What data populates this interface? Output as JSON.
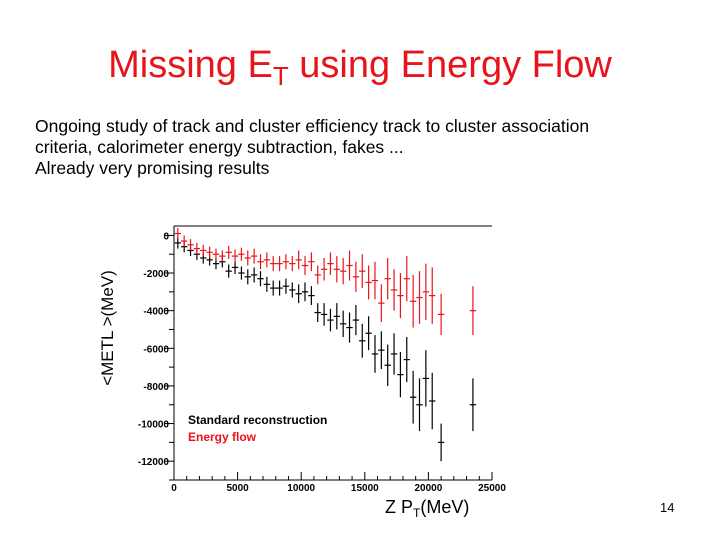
{
  "title_main": "Missing E",
  "title_sub": "T",
  "title_rest": " using Energy Flow",
  "body": [
    "Ongoing study of track and cluster efficiency track to cluster association",
    "criteria, calorimeter energy subtraction,  fakes ...",
    "Already very promising results"
  ],
  "page_number": "14",
  "chart_data": {
    "type": "scatter",
    "title": "",
    "ylabel": "<METL >(MeV)",
    "xlabel_prefix": "Z  P",
    "xlabel_sub": "T",
    "xlabel_suffix": "(MeV)",
    "xlim": [
      0,
      25000
    ],
    "ylim": [
      -13000,
      500
    ],
    "x_ticks": [
      0,
      5000,
      10000,
      15000,
      20000,
      25000
    ],
    "y_ticks": [
      0,
      -2000,
      -4000,
      -6000,
      -8000,
      -10000,
      -12000
    ],
    "colors": {
      "standard": "#000000",
      "energy_flow": "#e8141b"
    },
    "series": [
      {
        "name": "Standard reconstruction",
        "color": "#000000",
        "points": [
          {
            "x": 300,
            "y": -400,
            "ex": 250,
            "ey": 300
          },
          {
            "x": 800,
            "y": -600,
            "ex": 250,
            "ey": 300
          },
          {
            "x": 1300,
            "y": -800,
            "ex": 250,
            "ey": 300
          },
          {
            "x": 1800,
            "y": -1000,
            "ex": 250,
            "ey": 300
          },
          {
            "x": 2300,
            "y": -1200,
            "ex": 250,
            "ey": 300
          },
          {
            "x": 2800,
            "y": -1300,
            "ex": 250,
            "ey": 300
          },
          {
            "x": 3300,
            "y": -1500,
            "ex": 250,
            "ey": 300
          },
          {
            "x": 3800,
            "y": -1400,
            "ex": 250,
            "ey": 300
          },
          {
            "x": 4300,
            "y": -1900,
            "ex": 250,
            "ey": 350
          },
          {
            "x": 4800,
            "y": -1700,
            "ex": 250,
            "ey": 350
          },
          {
            "x": 5300,
            "y": -2000,
            "ex": 250,
            "ey": 350
          },
          {
            "x": 5800,
            "y": -2200,
            "ex": 250,
            "ey": 400
          },
          {
            "x": 6300,
            "y": -2100,
            "ex": 250,
            "ey": 400
          },
          {
            "x": 6800,
            "y": -2300,
            "ex": 250,
            "ey": 400
          },
          {
            "x": 7300,
            "y": -2600,
            "ex": 250,
            "ey": 400
          },
          {
            "x": 7800,
            "y": -2800,
            "ex": 250,
            "ey": 400
          },
          {
            "x": 8300,
            "y": -2800,
            "ex": 250,
            "ey": 400
          },
          {
            "x": 8800,
            "y": -2700,
            "ex": 250,
            "ey": 400
          },
          {
            "x": 9300,
            "y": -2900,
            "ex": 250,
            "ey": 400
          },
          {
            "x": 9800,
            "y": -3100,
            "ex": 250,
            "ey": 500
          },
          {
            "x": 10300,
            "y": -3000,
            "ex": 250,
            "ey": 500
          },
          {
            "x": 10800,
            "y": -3200,
            "ex": 250,
            "ey": 500
          },
          {
            "x": 11300,
            "y": -4100,
            "ex": 250,
            "ey": 500
          },
          {
            "x": 11800,
            "y": -4200,
            "ex": 250,
            "ey": 600
          },
          {
            "x": 12300,
            "y": -4500,
            "ex": 250,
            "ey": 600
          },
          {
            "x": 12800,
            "y": -4300,
            "ex": 250,
            "ey": 700
          },
          {
            "x": 13300,
            "y": -4700,
            "ex": 250,
            "ey": 700
          },
          {
            "x": 13800,
            "y": -4900,
            "ex": 250,
            "ey": 800
          },
          {
            "x": 14300,
            "y": -4500,
            "ex": 250,
            "ey": 800
          },
          {
            "x": 14800,
            "y": -5600,
            "ex": 250,
            "ey": 900
          },
          {
            "x": 15300,
            "y": -5200,
            "ex": 250,
            "ey": 900
          },
          {
            "x": 15800,
            "y": -6300,
            "ex": 250,
            "ey": 1000
          },
          {
            "x": 16300,
            "y": -6100,
            "ex": 250,
            "ey": 1000
          },
          {
            "x": 16800,
            "y": -6900,
            "ex": 250,
            "ey": 1100
          },
          {
            "x": 17300,
            "y": -6300,
            "ex": 250,
            "ey": 1100
          },
          {
            "x": 17800,
            "y": -7400,
            "ex": 250,
            "ey": 1200
          },
          {
            "x": 18300,
            "y": -6600,
            "ex": 250,
            "ey": 1200
          },
          {
            "x": 18800,
            "y": -8600,
            "ex": 250,
            "ey": 1400
          },
          {
            "x": 19300,
            "y": -9000,
            "ex": 250,
            "ey": 1400
          },
          {
            "x": 19800,
            "y": -7600,
            "ex": 250,
            "ey": 1500
          },
          {
            "x": 20300,
            "y": -8800,
            "ex": 250,
            "ey": 1500
          },
          {
            "x": 21000,
            "y": -11000,
            "ex": 250,
            "ey": 1000
          },
          {
            "x": 23500,
            "y": -9000,
            "ex": 250,
            "ey": 1400
          }
        ]
      },
      {
        "name": "Energy flow",
        "color": "#e8141b",
        "points": [
          {
            "x": 300,
            "y": 100,
            "ex": 250,
            "ey": 300
          },
          {
            "x": 800,
            "y": -300,
            "ex": 250,
            "ey": 300
          },
          {
            "x": 1300,
            "y": -500,
            "ex": 250,
            "ey": 300
          },
          {
            "x": 1800,
            "y": -700,
            "ex": 250,
            "ey": 300
          },
          {
            "x": 2300,
            "y": -800,
            "ex": 250,
            "ey": 300
          },
          {
            "x": 2800,
            "y": -900,
            "ex": 250,
            "ey": 300
          },
          {
            "x": 3300,
            "y": -1000,
            "ex": 250,
            "ey": 300
          },
          {
            "x": 3800,
            "y": -1100,
            "ex": 250,
            "ey": 300
          },
          {
            "x": 4300,
            "y": -900,
            "ex": 250,
            "ey": 350
          },
          {
            "x": 4800,
            "y": -1100,
            "ex": 250,
            "ey": 350
          },
          {
            "x": 5300,
            "y": -1000,
            "ex": 250,
            "ey": 350
          },
          {
            "x": 5800,
            "y": -1200,
            "ex": 250,
            "ey": 400
          },
          {
            "x": 6300,
            "y": -1100,
            "ex": 250,
            "ey": 400
          },
          {
            "x": 6800,
            "y": -1400,
            "ex": 250,
            "ey": 400
          },
          {
            "x": 7300,
            "y": -1300,
            "ex": 250,
            "ey": 400
          },
          {
            "x": 7800,
            "y": -1500,
            "ex": 250,
            "ey": 400
          },
          {
            "x": 8300,
            "y": -1500,
            "ex": 250,
            "ey": 400
          },
          {
            "x": 8800,
            "y": -1400,
            "ex": 250,
            "ey": 400
          },
          {
            "x": 9300,
            "y": -1500,
            "ex": 250,
            "ey": 400
          },
          {
            "x": 9800,
            "y": -1300,
            "ex": 250,
            "ey": 500
          },
          {
            "x": 10300,
            "y": -1600,
            "ex": 250,
            "ey": 500
          },
          {
            "x": 10800,
            "y": -1400,
            "ex": 250,
            "ey": 500
          },
          {
            "x": 11300,
            "y": -2100,
            "ex": 250,
            "ey": 500
          },
          {
            "x": 11800,
            "y": -1800,
            "ex": 250,
            "ey": 600
          },
          {
            "x": 12300,
            "y": -1500,
            "ex": 250,
            "ey": 600
          },
          {
            "x": 12800,
            "y": -1800,
            "ex": 250,
            "ey": 700
          },
          {
            "x": 13300,
            "y": -1900,
            "ex": 250,
            "ey": 700
          },
          {
            "x": 13800,
            "y": -1600,
            "ex": 250,
            "ey": 800
          },
          {
            "x": 14300,
            "y": -2200,
            "ex": 250,
            "ey": 800
          },
          {
            "x": 14800,
            "y": -1900,
            "ex": 250,
            "ey": 900
          },
          {
            "x": 15300,
            "y": -2500,
            "ex": 250,
            "ey": 900
          },
          {
            "x": 15800,
            "y": -2400,
            "ex": 250,
            "ey": 1000
          },
          {
            "x": 16300,
            "y": -3600,
            "ex": 250,
            "ey": 1000
          },
          {
            "x": 16800,
            "y": -2300,
            "ex": 250,
            "ey": 1100
          },
          {
            "x": 17300,
            "y": -2900,
            "ex": 250,
            "ey": 1100
          },
          {
            "x": 17800,
            "y": -3200,
            "ex": 250,
            "ey": 1200
          },
          {
            "x": 18300,
            "y": -2300,
            "ex": 250,
            "ey": 1200
          },
          {
            "x": 18800,
            "y": -3500,
            "ex": 250,
            "ey": 1400
          },
          {
            "x": 19300,
            "y": -3300,
            "ex": 250,
            "ey": 1400
          },
          {
            "x": 19800,
            "y": -3000,
            "ex": 250,
            "ey": 1500
          },
          {
            "x": 20300,
            "y": -3200,
            "ex": 250,
            "ey": 1500
          },
          {
            "x": 21000,
            "y": -4200,
            "ex": 250,
            "ey": 1100
          },
          {
            "x": 23500,
            "y": -4000,
            "ex": 250,
            "ey": 1300
          }
        ]
      }
    ],
    "legend_placement": "bottom-left",
    "grid": false
  }
}
